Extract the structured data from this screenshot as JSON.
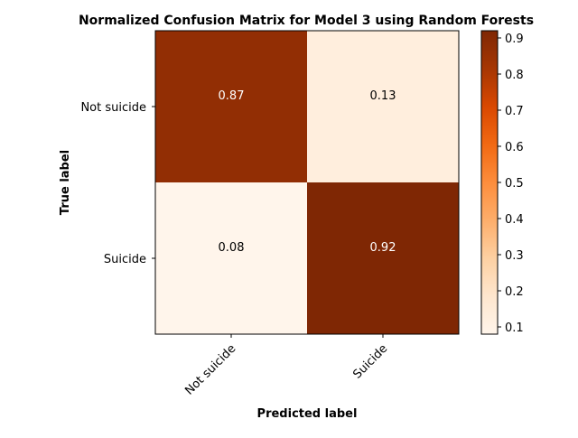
{
  "chart_data": {
    "type": "heatmap",
    "title": "Normalized Confusion Matrix for Model 3 using Random Forests",
    "xlabel": "Predicted label",
    "ylabel": "True label",
    "x_categories": [
      "Not suicide",
      "Suicide"
    ],
    "y_categories": [
      "Not suicide",
      "Suicide"
    ],
    "values": [
      [
        0.87,
        0.13
      ],
      [
        0.08,
        0.92
      ]
    ],
    "cell_labels": [
      [
        "0.87",
        "0.13"
      ],
      [
        "0.08",
        "0.92"
      ]
    ],
    "colormap": "Oranges",
    "colorbar": {
      "range": [
        0.08,
        0.92
      ],
      "ticks": [
        0.1,
        0.2,
        0.3,
        0.4,
        0.5,
        0.6,
        0.7,
        0.8,
        0.9
      ],
      "tick_labels": [
        "0.1",
        "0.2",
        "0.3",
        "0.4",
        "0.5",
        "0.6",
        "0.7",
        "0.8",
        "0.9"
      ]
    },
    "grid": false
  }
}
